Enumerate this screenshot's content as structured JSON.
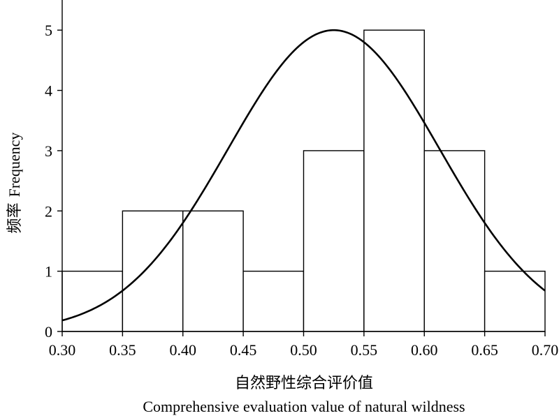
{
  "chart_data": {
    "type": "bar",
    "subtype": "histogram-with-normal-curve",
    "bins": [
      {
        "from": 0.3,
        "to": 0.35,
        "value": 1
      },
      {
        "from": 0.35,
        "to": 0.4,
        "value": 2
      },
      {
        "from": 0.4,
        "to": 0.45,
        "value": 2
      },
      {
        "from": 0.45,
        "to": 0.5,
        "value": 1
      },
      {
        "from": 0.5,
        "to": 0.55,
        "value": 3
      },
      {
        "from": 0.55,
        "to": 0.6,
        "value": 5
      },
      {
        "from": 0.6,
        "to": 0.65,
        "value": 3
      },
      {
        "from": 0.65,
        "to": 0.7,
        "value": 1
      }
    ],
    "curve": {
      "type": "normal",
      "mean": 0.525,
      "sd": 0.0875,
      "peak": 5.0
    },
    "x_ticks": [
      "0.30",
      "0.35",
      "0.40",
      "0.45",
      "0.50",
      "0.55",
      "0.60",
      "0.65",
      "0.70"
    ],
    "y_ticks": [
      "0",
      "1",
      "2",
      "3",
      "4",
      "5"
    ],
    "xlim": [
      0.3,
      0.7
    ],
    "ylim": [
      0,
      5.5
    ],
    "xlabel_cn": "自然野性综合评价值",
    "xlabel_en": "Comprehensive evaluation value of natural wildness",
    "ylabel_cn": "频率",
    "ylabel_en": "Frequency",
    "grid": false,
    "colors": {
      "bar_fill": "#ffffff",
      "stroke": "#000000",
      "curve": "#000000"
    }
  }
}
